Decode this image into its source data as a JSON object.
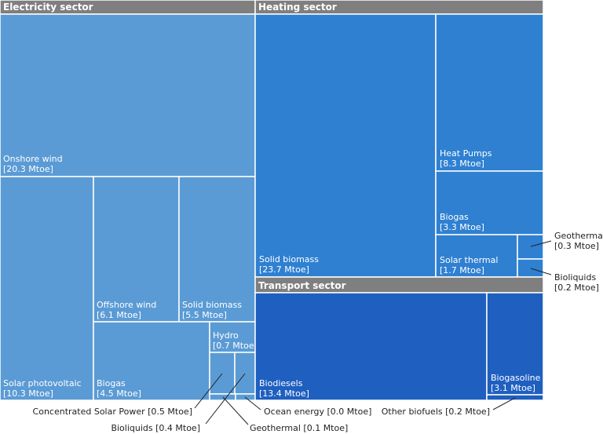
{
  "chart_data": {
    "type": "treemap",
    "unit": "Mtoe",
    "sectors": [
      {
        "name": "Electricity sector",
        "color": "#5b9bd5",
        "items": [
          {
            "name": "Onshore wind",
            "value": 20.3,
            "label": "Onshore wind",
            "value_label": "[20.3 Mtoe]"
          },
          {
            "name": "Solar photovoltaic",
            "value": 10.3,
            "label": "Solar photovoltaic",
            "value_label": "[10.3 Mtoe]"
          },
          {
            "name": "Offshore wind",
            "value": 6.1,
            "label": "Offshore wind",
            "value_label": "[6.1 Mtoe]"
          },
          {
            "name": "Solid biomass",
            "value": 5.5,
            "label": "Solid biomass",
            "value_label": "[5.5 Mtoe]"
          },
          {
            "name": "Biogas",
            "value": 4.5,
            "label": "Biogas",
            "value_label": "[4.5 Mtoe]"
          },
          {
            "name": "Hydro",
            "value": 0.7,
            "label": "Hydro",
            "value_label": "[0.7 Mtoe]"
          },
          {
            "name": "Concentrated Solar Power",
            "value": 0.5,
            "label": "Concentrated Solar Power [0.5 Mtoe]"
          },
          {
            "name": "Bioliquids",
            "value": 0.4,
            "label": "Bioliquids [0.4 Mtoe]"
          },
          {
            "name": "Geothermal",
            "value": 0.1,
            "label": "Geothermal [0.1 Mtoe]"
          },
          {
            "name": "Ocean energy",
            "value": 0.0,
            "label": "Ocean energy [0.0 Mtoe]"
          }
        ]
      },
      {
        "name": "Heating sector",
        "color": "#2f80d1",
        "items": [
          {
            "name": "Solid biomass",
            "value": 23.7,
            "label": "Solid biomass",
            "value_label": "[23.7 Mtoe]"
          },
          {
            "name": "Heat Pumps",
            "value": 8.3,
            "label": "Heat Pumps",
            "value_label": "[8.3 Mtoe]"
          },
          {
            "name": "Biogas",
            "value": 3.3,
            "label": "Biogas",
            "value_label": "[3.3 Mtoe]"
          },
          {
            "name": "Solar thermal",
            "value": 1.7,
            "label": "Solar thermal",
            "value_label": "[1.7 Mtoe]"
          },
          {
            "name": "Geothermal",
            "value": 0.3,
            "label": "Geothermal",
            "value_label": "[0.3 Mtoe]"
          },
          {
            "name": "Bioliquids",
            "value": 0.2,
            "label": "Bioliquids",
            "value_label": "[0.2 Mtoe]"
          }
        ]
      },
      {
        "name": "Transport sector",
        "color": "#1f5fc0",
        "items": [
          {
            "name": "Biodiesels",
            "value": 13.4,
            "label": "Biodiesels",
            "value_label": "[13.4 Mtoe]"
          },
          {
            "name": "Biogasoline",
            "value": 3.1,
            "label": "Biogasoline",
            "value_label": "[3.1 Mtoe]"
          },
          {
            "name": "Other biofuels",
            "value": 0.2,
            "label": "Other biofuels [0.2 Mtoe]"
          }
        ]
      }
    ],
    "header_color": "#7f7f7f"
  }
}
